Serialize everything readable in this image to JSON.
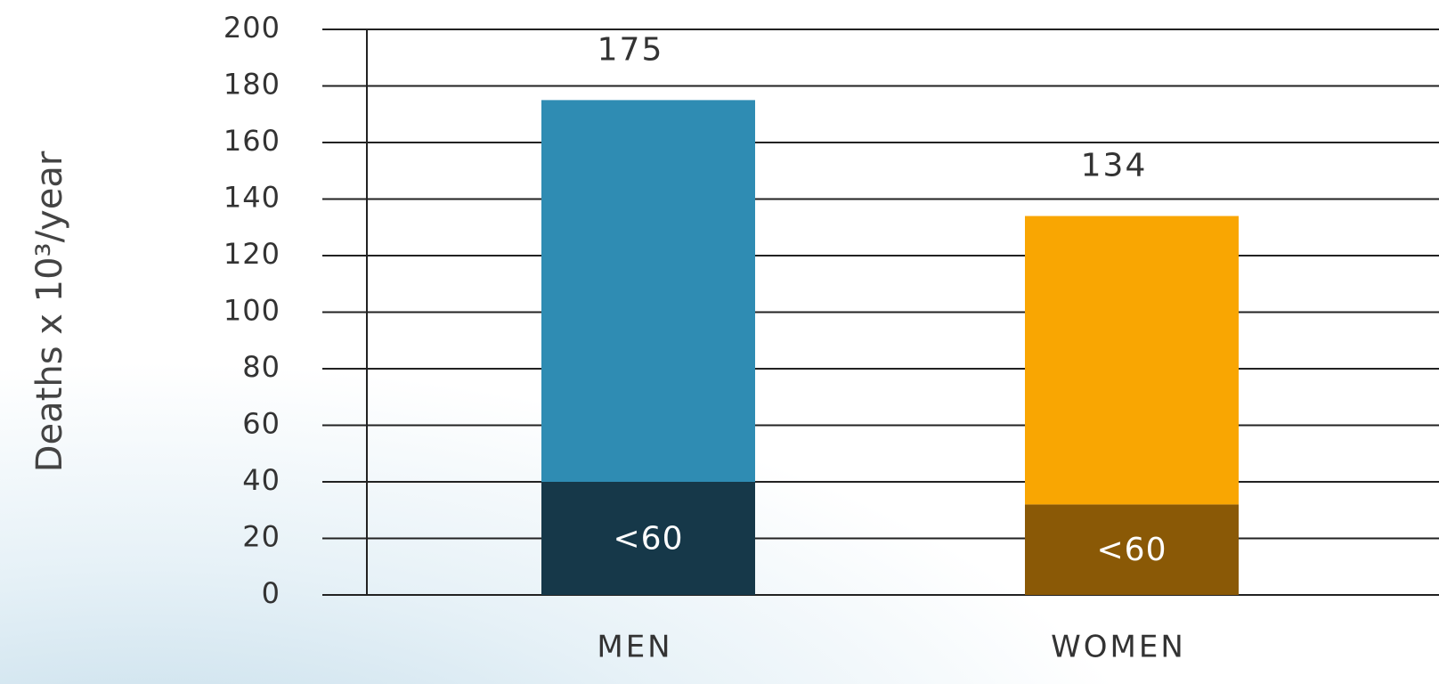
{
  "chart_data": {
    "type": "stacked_bar",
    "y_label": "Deaths x 10³/year",
    "categories": [
      "MEN",
      "WOMEN"
    ],
    "series": [
      {
        "name": "<60",
        "colors": [
          "#163849",
          "#8a5906"
        ],
        "values": [
          40,
          32
        ]
      },
      {
        "colors": [
          "#2f8cb3",
          "#f9a602"
        ],
        "values": [
          135,
          102
        ]
      }
    ],
    "totals": [
      175,
      134
    ],
    "ylim": [
      0,
      200
    ],
    "yticks": [
      0,
      20,
      40,
      60,
      80,
      100,
      120,
      140,
      160,
      180,
      200
    ],
    "grid": true
  }
}
